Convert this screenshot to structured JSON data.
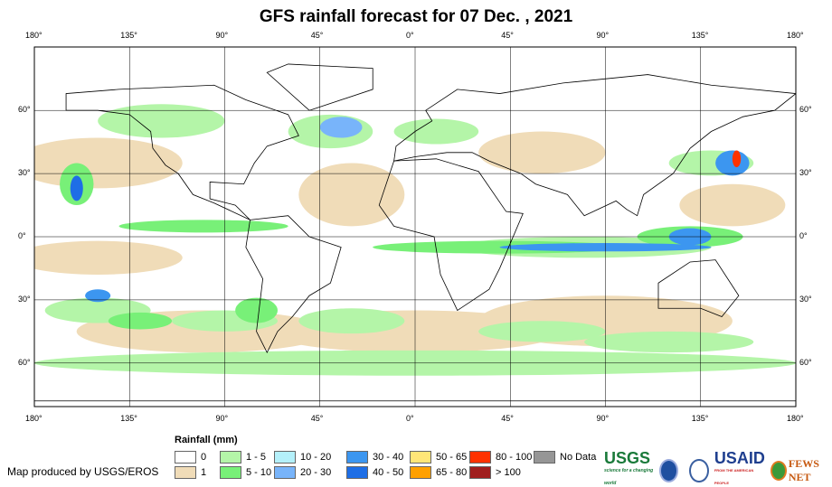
{
  "title": "GFS rainfall forecast for 07 Dec. , 2021",
  "lon_labels": [
    "180°",
    "135°",
    "90°",
    "45°",
    "0°",
    "45°",
    "90°",
    "135°",
    "180°"
  ],
  "lat_labels": [
    "60°",
    "30°",
    "0°",
    "30°",
    "60°"
  ],
  "legend": {
    "title": "Rainfall (mm)",
    "items": [
      {
        "label": "0",
        "color": "#ffffff"
      },
      {
        "label": "1",
        "color": "#f0dcb8"
      },
      {
        "label": "1 - 5",
        "color": "#b4f5a8"
      },
      {
        "label": "5 - 10",
        "color": "#78f078"
      },
      {
        "label": "10 - 20",
        "color": "#b4f0fa"
      },
      {
        "label": "20 - 30",
        "color": "#78b4fa"
      },
      {
        "label": "30 - 40",
        "color": "#3c96f0"
      },
      {
        "label": "40 - 50",
        "color": "#1e6ee6"
      },
      {
        "label": "50 - 65",
        "color": "#ffe678"
      },
      {
        "label": "65 - 80",
        "color": "#ffa000"
      },
      {
        "label": "80 - 100",
        "color": "#ff3200"
      },
      {
        "label": "> 100",
        "color": "#a01e1e"
      },
      {
        "label": "No Data",
        "color": "#969696"
      }
    ]
  },
  "credit": "Map produced by USGS/EROS",
  "logos": {
    "usgs": "USGS",
    "usgs_tagline": "science for a changing world",
    "usaid": "USAID",
    "usaid_tagline": "FROM THE AMERICAN PEOPLE",
    "fews": "FEWS NET"
  }
}
